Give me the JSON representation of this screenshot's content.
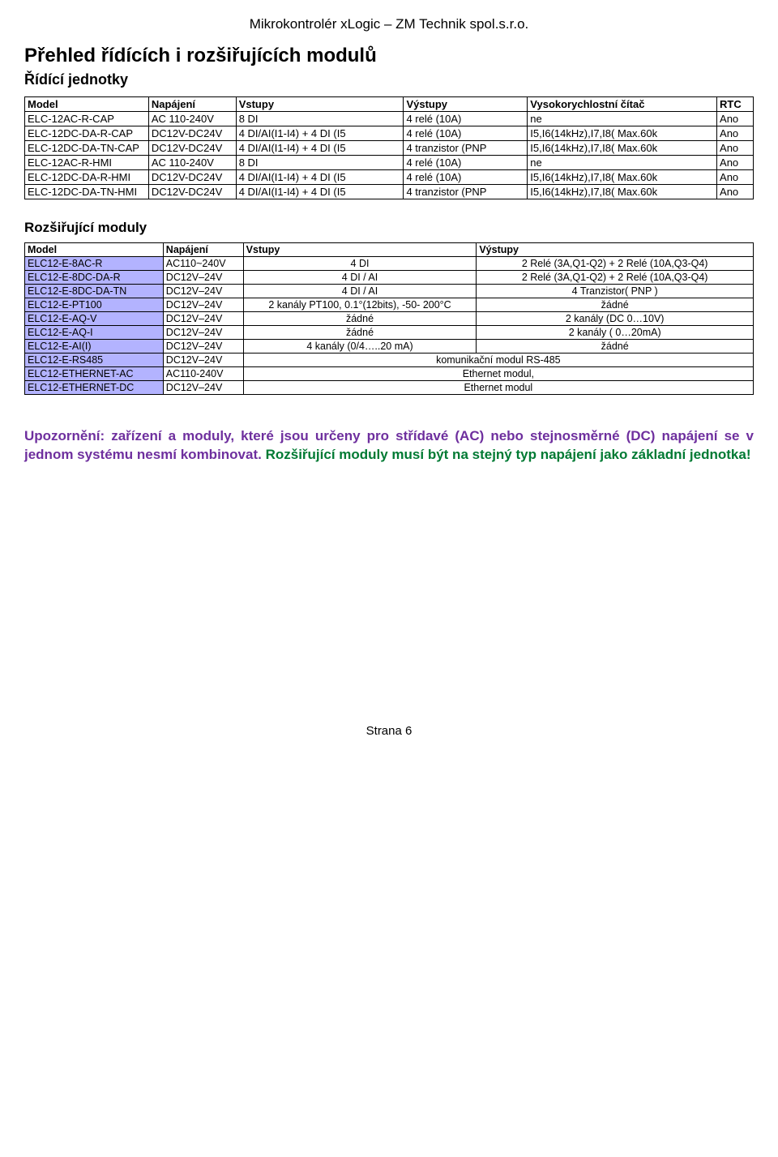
{
  "header": "Mikrokontrolér xLogic – ZM Technik spol.s.r.o.",
  "title": "Přehled řídících i rozšiřujících modulů",
  "section1_title": "Řídící jednotky",
  "section2_title": "Rozšiřující moduly",
  "table1": {
    "columns": [
      "Model",
      "Napájení",
      "Vstupy",
      "Výstupy",
      "Vysokorychlostní čítač",
      "RTC"
    ],
    "colwidths": [
      "17%",
      "12%",
      "23%",
      "17%",
      "26%",
      "5%"
    ],
    "rows": [
      [
        "ELC-12AC-R-CAP",
        "AC 110-240V",
        "8 DI",
        "4 relé (10A)",
        "ne",
        "Ano"
      ],
      [
        "ELC-12DC-DA-R-CAP",
        "DC12V-DC24V",
        "4 DI/AI(I1-I4) + 4 DI (I5",
        "4 relé (10A)",
        "I5,I6(14kHz),I7,I8( Max.60k",
        "Ano"
      ],
      [
        "ELC-12DC-DA-TN-CAP",
        "DC12V-DC24V",
        "4 DI/AI(I1-I4) + 4 DI (I5",
        "4 tranzistor (PNP",
        "I5,I6(14kHz),I7,I8( Max.60k",
        "Ano"
      ],
      [
        "ELC-12AC-R-HMI",
        "AC 110-240V",
        "8 DI",
        "4 relé (10A)",
        "ne",
        "Ano"
      ],
      [
        "ELC-12DC-DA-R-HMI",
        "DC12V-DC24V",
        "4 DI/AI(I1-I4) + 4 DI (I5",
        "4 relé (10A)",
        "I5,I6(14kHz),I7,I8( Max.60k",
        "Ano"
      ],
      [
        "ELC-12DC-DA-TN-HMI",
        "DC12V-DC24V",
        "4 DI/AI(I1-I4) + 4 DI (I5",
        "4 tranzistor (PNP",
        "I5,I6(14kHz),I7,I8( Max.60k",
        "Ano"
      ]
    ]
  },
  "table2": {
    "columns": [
      "Model",
      "Napájení",
      "Vstupy",
      "Výstupy"
    ],
    "colwidths": [
      "19%",
      "11%",
      "32%",
      "38%"
    ],
    "rows": [
      {
        "cells": [
          "ELC12-E-8AC-R",
          "AC110~240V",
          "4  DI",
          "2 Relé (3A,Q1-Q2)  + 2 Relé (10A,Q3-Q4)"
        ],
        "span": null
      },
      {
        "cells": [
          "ELC12-E-8DC-DA-R",
          "DC12V–24V",
          "4  DI / AI",
          "2 Relé (3A,Q1-Q2)  + 2 Relé (10A,Q3-Q4)"
        ],
        "span": null
      },
      {
        "cells": [
          "ELC12-E-8DC-DA-TN",
          "DC12V–24V",
          "4  DI / AI",
          "4 Tranzistor( PNP )"
        ],
        "span": null
      },
      {
        "cells": [
          "ELC12-E-PT100",
          "DC12V–24V",
          "2 kanály PT100, 0.1°(12bits), -50- 200°C",
          "žádné"
        ],
        "span": null
      },
      {
        "cells": [
          "ELC12-E-AQ-V",
          "DC12V–24V",
          "žádné",
          "2 kanály (DC 0…10V)"
        ],
        "span": null
      },
      {
        "cells": [
          "ELC12-E-AQ-I",
          "DC12V–24V",
          "žádné",
          "2 kanály ( 0…20mA)"
        ],
        "span": null
      },
      {
        "cells": [
          "ELC12-E-AI(I)",
          "DC12V–24V",
          "4  kanály (0/4…..20 mA)",
          "žádné"
        ],
        "span": null
      },
      {
        "cells": [
          "ELC12-E-RS485",
          "DC12V–24V",
          "komunikační modul RS-485"
        ],
        "span": 2
      },
      {
        "cells": [
          "ELC12-ETHERNET-AC",
          "AC110-240V",
          "Ethernet modul,"
        ],
        "span": 2
      },
      {
        "cells": [
          "ELC12-ETHERNET-DC",
          "DC12V–24V",
          "Ethernet modul"
        ],
        "span": 2
      }
    ]
  },
  "warning_parts": {
    "p1": "Upozornění: zařízení a moduly, které jsou určeny pro střídavé (AC) nebo stejnosměrné (DC) napájení se v jednom systému nesmí kombinovat. ",
    "p2": "Rozšiřující moduly musí být na stejný typ napájení jako základní jednotka!"
  },
  "footer": "Strana 6"
}
